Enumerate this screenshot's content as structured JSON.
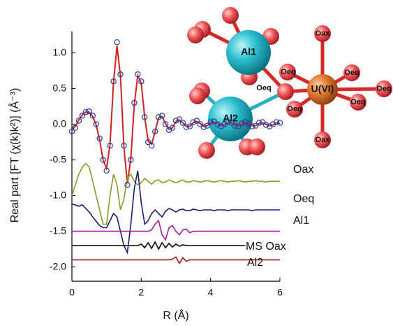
{
  "chart_data": {
    "type": "line",
    "x_label": "R (Å)",
    "y_label": "Real part [FT (χ(k)k²)] (Å⁻³)",
    "xlim": [
      0,
      6
    ],
    "ylim": [
      -2.2,
      1.3
    ],
    "xticks": [
      0,
      2,
      4,
      6
    ],
    "yticks": [
      {
        "value": -2.0,
        "label": "-2.0"
      },
      {
        "value": -1.5,
        "label": "-1.5"
      },
      {
        "value": -1.0,
        "label": "-1.0"
      },
      {
        "value": -0.5,
        "label": "-0.5"
      },
      {
        "value": 0.0,
        "label": "0.0"
      },
      {
        "value": 0.5,
        "label": "0.5"
      },
      {
        "value": 1.0,
        "label": "1.0"
      }
    ],
    "grid": false,
    "x": [
      0,
      0.1,
      0.2,
      0.3,
      0.4,
      0.5,
      0.6,
      0.7,
      0.8,
      0.9,
      1.0,
      1.1,
      1.2,
      1.3,
      1.4,
      1.5,
      1.6,
      1.7,
      1.8,
      1.9,
      2.0,
      2.1,
      2.2,
      2.3,
      2.4,
      2.5,
      2.6,
      2.7,
      2.8,
      2.9,
      3.0,
      3.1,
      3.2,
      3.3,
      3.4,
      3.5,
      3.6,
      3.7,
      3.8,
      3.9,
      4.0,
      4.1,
      4.2,
      4.3,
      4.4,
      4.5,
      4.6,
      4.7,
      4.8,
      4.9,
      5.0,
      5.1,
      5.2,
      5.3,
      5.4,
      5.5,
      5.6,
      5.7,
      5.8,
      5.9,
      6.0
    ],
    "series": [
      {
        "marker": "circle",
        "color": "#2a3aa0",
        "values": [
          -0.1,
          -0.05,
          0.05,
          0.12,
          0.17,
          0.18,
          0.12,
          0.0,
          -0.2,
          -0.5,
          -0.65,
          -0.3,
          0.6,
          1.15,
          0.7,
          -0.3,
          -0.85,
          -0.5,
          0.3,
          0.7,
          0.6,
          0.1,
          -0.25,
          -0.3,
          -0.1,
          0.1,
          0.12,
          0.0,
          -0.08,
          -0.05,
          0.05,
          0.07,
          0.02,
          -0.04,
          -0.03,
          0.03,
          0.05,
          0.0,
          -0.04,
          -0.02,
          0.03,
          0.04,
          0.0,
          -0.03,
          0.0,
          0.03,
          0.02,
          -0.02,
          -0.03,
          0.01,
          0.03,
          0.01,
          -0.03,
          -0.02,
          0.02,
          0.03,
          -0.01,
          -0.03,
          0.0,
          0.03,
          0.02
        ]
      },
      {
        "marker": "line",
        "color": "#d02020",
        "values": [
          -0.08,
          -0.03,
          0.06,
          0.13,
          0.17,
          0.17,
          0.11,
          -0.01,
          -0.22,
          -0.5,
          -0.62,
          -0.28,
          0.58,
          1.1,
          0.68,
          -0.32,
          -0.83,
          -0.48,
          0.28,
          0.68,
          0.58,
          0.1,
          -0.24,
          -0.28,
          -0.1,
          0.09,
          0.11,
          0.01,
          -0.07,
          -0.05,
          0.04,
          0.06,
          0.02,
          -0.03,
          -0.03,
          0.02,
          0.04,
          0.01,
          -0.03,
          -0.02,
          0.02,
          0.03,
          0.01,
          -0.02,
          -0.01,
          0.02,
          0.02,
          -0.01,
          -0.02,
          0.0,
          0.02,
          0.01,
          -0.02,
          -0.02,
          0.01,
          0.02,
          0.0,
          -0.02,
          -0.01,
          0.02,
          0.01
        ]
      },
      {
        "name": "Oax",
        "marker": "line",
        "color": "#8a9a2a",
        "values": [
          -1.0,
          -0.85,
          -0.7,
          -0.6,
          -0.55,
          -0.6,
          -0.8,
          -1.0,
          -1.2,
          -1.4,
          -1.4,
          -1.0,
          -0.7,
          -0.85,
          -1.2,
          -1.05,
          -0.75,
          -0.7,
          -0.8,
          -0.85,
          -0.82,
          -0.76,
          -0.8,
          -0.84,
          -0.79,
          -0.78,
          -0.82,
          -0.81,
          -0.78,
          -0.8,
          -0.82,
          -0.8,
          -0.78,
          -0.81,
          -0.81,
          -0.79,
          -0.8,
          -0.81,
          -0.8,
          -0.79,
          -0.8,
          -0.81,
          -0.8,
          -0.79,
          -0.8,
          -0.81,
          -0.8,
          -0.8,
          -0.79,
          -0.8,
          -0.81,
          -0.8,
          -0.8,
          -0.79,
          -0.8,
          -0.8,
          -0.81,
          -0.8,
          -0.8,
          -0.8,
          -0.8
        ]
      },
      {
        "name": "Oeq",
        "marker": "line",
        "color": "#1c1c70",
        "values": [
          -1.12,
          -1.13,
          -1.15,
          -1.13,
          -1.18,
          -1.23,
          -1.3,
          -1.36,
          -1.42,
          -1.45,
          -1.45,
          -1.35,
          -1.25,
          -1.3,
          -1.5,
          -1.7,
          -1.8,
          -1.4,
          -0.9,
          -0.65,
          -1.1,
          -1.4,
          -1.35,
          -1.25,
          -1.2,
          -1.25,
          -1.3,
          -1.22,
          -1.18,
          -1.2,
          -1.23,
          -1.2,
          -1.19,
          -1.21,
          -1.21,
          -1.19,
          -1.2,
          -1.21,
          -1.2,
          -1.2,
          -1.2,
          -1.21,
          -1.2,
          -1.2,
          -1.2,
          -1.21,
          -1.2,
          -1.2,
          -1.2,
          -1.2,
          -1.2,
          -1.2,
          -1.21,
          -1.2,
          -1.2,
          -1.2,
          -1.2,
          -1.2,
          -1.2,
          -1.2,
          -1.2
        ]
      },
      {
        "name": "Al1",
        "marker": "line",
        "color": "#a020a0",
        "values": [
          -1.5,
          -1.5,
          -1.5,
          -1.5,
          -1.5,
          -1.5,
          -1.5,
          -1.5,
          -1.5,
          -1.5,
          -1.5,
          -1.5,
          -1.5,
          -1.5,
          -1.5,
          -1.5,
          -1.5,
          -1.5,
          -1.5,
          -1.5,
          -1.5,
          -1.5,
          -1.5,
          -1.48,
          -1.4,
          -1.35,
          -1.55,
          -1.62,
          -1.45,
          -1.42,
          -1.5,
          -1.55,
          -1.48,
          -1.47,
          -1.52,
          -1.5,
          -1.5,
          -1.5,
          -1.5,
          -1.5,
          -1.5,
          -1.5,
          -1.5,
          -1.5,
          -1.5,
          -1.5,
          -1.5,
          -1.5,
          -1.5,
          -1.5,
          -1.5,
          -1.5,
          -1.5,
          -1.5,
          -1.5,
          -1.5,
          -1.5,
          -1.5,
          -1.5,
          -1.5,
          -1.5
        ]
      },
      {
        "name": "MS Oax",
        "marker": "line",
        "color": "#000000",
        "values": [
          -1.7,
          -1.7,
          -1.7,
          -1.7,
          -1.7,
          -1.7,
          -1.7,
          -1.7,
          -1.7,
          -1.7,
          -1.7,
          -1.7,
          -1.7,
          -1.7,
          -1.7,
          -1.7,
          -1.7,
          -1.7,
          -1.7,
          -1.7,
          -1.68,
          -1.73,
          -1.66,
          -1.74,
          -1.65,
          -1.75,
          -1.66,
          -1.73,
          -1.67,
          -1.72,
          -1.68,
          -1.71,
          -1.69,
          -1.7,
          -1.7,
          -1.7,
          -1.7,
          -1.7,
          -1.7,
          -1.7,
          -1.7,
          -1.7,
          -1.7,
          -1.7,
          -1.7,
          -1.7,
          -1.7,
          -1.7,
          -1.7,
          -1.7,
          -1.7,
          null,
          null,
          null,
          null,
          null,
          null,
          null,
          null,
          null,
          null
        ]
      },
      {
        "name": "Al2",
        "marker": "line",
        "color": "#a01818",
        "values": [
          -1.9,
          -1.9,
          -1.9,
          -1.9,
          -1.9,
          -1.9,
          -1.9,
          -1.9,
          -1.9,
          -1.9,
          -1.9,
          -1.9,
          -1.9,
          -1.9,
          -1.9,
          -1.9,
          -1.9,
          -1.9,
          -1.9,
          -1.9,
          -1.9,
          -1.9,
          -1.9,
          -1.9,
          -1.9,
          -1.9,
          -1.9,
          -1.9,
          -1.9,
          -1.89,
          -1.86,
          -1.95,
          -1.87,
          -1.92,
          -1.9,
          -1.9,
          -1.9,
          -1.9,
          -1.9,
          -1.9,
          -1.9,
          -1.9,
          -1.9,
          -1.9,
          -1.9,
          -1.9,
          -1.9,
          -1.9,
          -1.9,
          -1.9,
          -1.9,
          -1.9,
          -1.9,
          -1.9,
          -1.9,
          -1.9,
          -1.9,
          -1.9,
          -1.9,
          -1.9,
          -1.9
        ]
      }
    ],
    "diagram_labels": [
      "Al1",
      "Al2",
      "U(VI)",
      "Oax",
      "Oax",
      "Oeq",
      "Oeq",
      "Oeq",
      "Oeq",
      "Oeq",
      "Oeq"
    ]
  }
}
